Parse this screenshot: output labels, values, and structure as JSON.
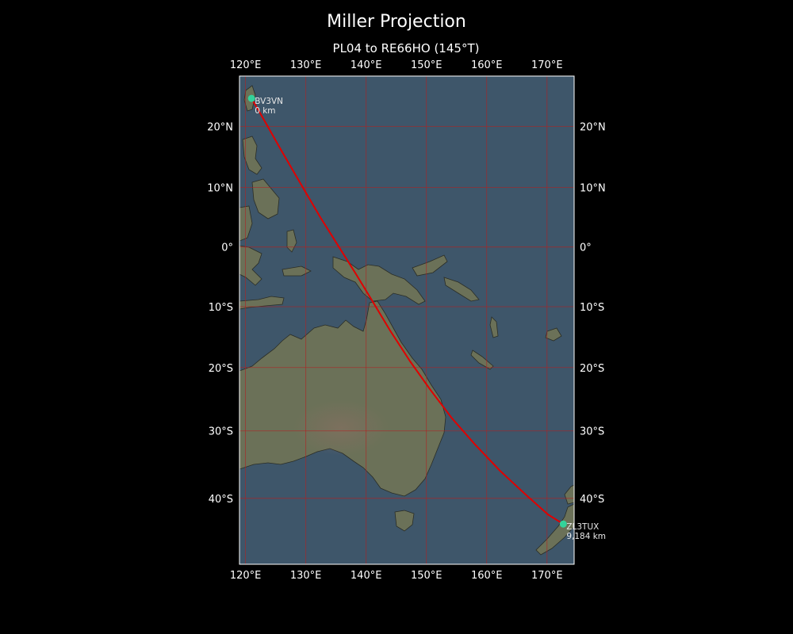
{
  "title": "Miller Projection",
  "subtitle": "PL04 to RE66HO (145°T)",
  "colors": {
    "background": "#000000",
    "ocean": "#3e566a",
    "land": "#6b7158",
    "grid": "#b22222",
    "path": "#e00000",
    "station": "#33d39a"
  },
  "map": {
    "projection": "Miller",
    "lon_range": [
      119,
      174.5
    ],
    "lat_range": [
      -49,
      28
    ],
    "lon_ticks": [
      {
        "lon": 120,
        "label": "120°E"
      },
      {
        "lon": 130,
        "label": "130°E"
      },
      {
        "lon": 140,
        "label": "140°E"
      },
      {
        "lon": 150,
        "label": "150°E"
      },
      {
        "lon": 160,
        "label": "160°E"
      },
      {
        "lon": 170,
        "label": "170°E"
      }
    ],
    "lat_ticks": [
      {
        "lat": 20,
        "label": "20°N"
      },
      {
        "lat": 10,
        "label": "10°N"
      },
      {
        "lat": 0,
        "label": "0°"
      },
      {
        "lat": -10,
        "label": "10°S"
      },
      {
        "lat": -20,
        "label": "20°S"
      },
      {
        "lat": -30,
        "label": "30°S"
      },
      {
        "lat": -40,
        "label": "40°S"
      }
    ],
    "grid": true
  },
  "stations": [
    {
      "call": "BV3VN",
      "dist": "0 km",
      "lon": 121.0,
      "lat": 24.5
    },
    {
      "call": "ZL3TUX",
      "dist": "9,184 km",
      "lon": 172.7,
      "lat": -43.6
    }
  ],
  "path": {
    "bearing": "145°T",
    "points": [
      [
        121.0,
        24.5
      ],
      [
        123.1,
        21.0
      ],
      [
        126.0,
        16.0
      ],
      [
        129.2,
        10.5
      ],
      [
        132.4,
        5.0
      ],
      [
        135.5,
        0.0
      ],
      [
        138.3,
        -4.5
      ],
      [
        141.0,
        -9.0
      ],
      [
        144.0,
        -14.0
      ],
      [
        147.3,
        -19.0
      ],
      [
        150.6,
        -23.5
      ],
      [
        154.2,
        -28.0
      ],
      [
        158.0,
        -32.0
      ],
      [
        162.2,
        -36.0
      ],
      [
        166.5,
        -39.5
      ],
      [
        170.2,
        -42.3
      ],
      [
        172.7,
        -43.6
      ]
    ]
  }
}
